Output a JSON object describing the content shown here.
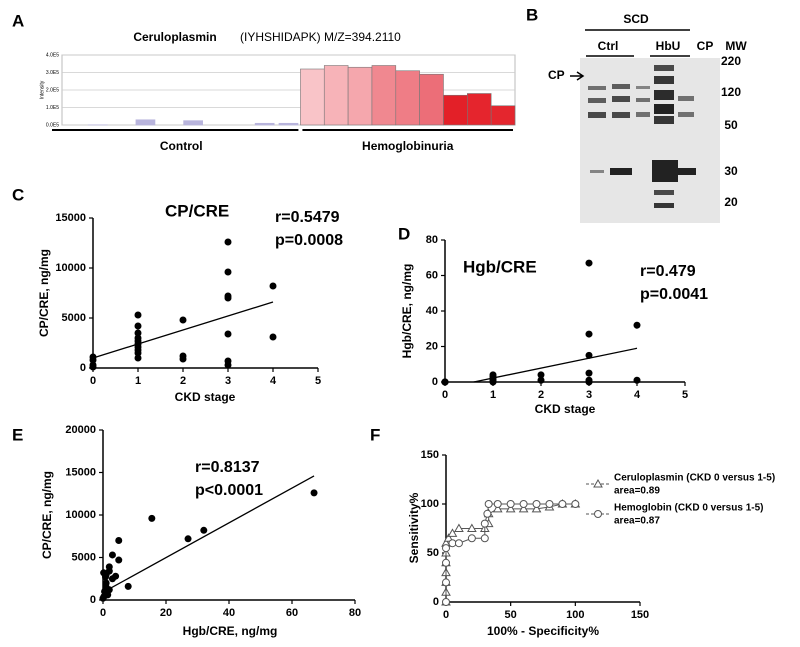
{
  "blot": {
    "panel": "B",
    "group": "SCD",
    "lanes": [
      "Ctrl",
      "HbU",
      "CP"
    ],
    "mw_header": "MW",
    "mw_markers": [
      220,
      120,
      50,
      30,
      20
    ],
    "arrow_label": "CP"
  },
  "chart_data": [
    {
      "type": "bar",
      "panel": "A",
      "title": "Ceruloplasmin",
      "subtitle": "(IYHSHIDAPK) M/Z=394.2110",
      "y_label": "Intensity",
      "groups": [
        {
          "label": "Control",
          "color": "#b8b4dc",
          "values": [
            0,
            1000,
            0,
            30000,
            0,
            25000,
            0,
            0,
            10000,
            10000
          ]
        },
        {
          "label": "Hemoglobinuria",
          "colors": [
            "#f9c4c8",
            "#f7b3b8",
            "#f5a7ad",
            "#f08890",
            "#ef7d86",
            "#ec6e78",
            "#e32028",
            "#e5252d",
            "#e4262e"
          ],
          "values": [
            320000,
            340000,
            330000,
            340000,
            310000,
            290000,
            170000,
            180000,
            110000
          ]
        }
      ],
      "ylim": [
        0,
        400000
      ],
      "yticks": [
        {
          "value": 0,
          "label": "0.0E5"
        },
        {
          "value": 100000,
          "label": "1.0E5"
        },
        {
          "value": 200000,
          "label": "2.0E5"
        },
        {
          "value": 300000,
          "label": "3.0E5"
        },
        {
          "value": 400000,
          "label": "4.0E5"
        }
      ],
      "grid": true
    },
    {
      "type": "scatter",
      "panel": "C",
      "title": "CP/CRE",
      "annotations": [
        "r=0.5479",
        "p=0.0008"
      ],
      "x_label": "CKD stage",
      "y_label": "CP/CRE, ng/mg",
      "series": [
        {
          "color": "#000000",
          "x": [
            0,
            0,
            0,
            0,
            1,
            1,
            1,
            1,
            1,
            1,
            1,
            1,
            1,
            1,
            2,
            2,
            2,
            3,
            3,
            3,
            3,
            3,
            3,
            3,
            4,
            4
          ],
          "values": [
            1100,
            800,
            300,
            100,
            5300,
            4200,
            3500,
            3000,
            2700,
            2400,
            2100,
            1800,
            1500,
            1000,
            4800,
            1200,
            900,
            12600,
            9600,
            7200,
            7000,
            3400,
            700,
            300,
            8200,
            3100
          ]
        }
      ],
      "fit_line": {
        "x": [
          0,
          4
        ],
        "y": [
          1000,
          6600
        ]
      },
      "xlim": [
        0,
        5
      ],
      "xticks": [
        0,
        1,
        2,
        3,
        4,
        5
      ],
      "ylim": [
        0,
        15000
      ],
      "yticks": [
        0,
        5000,
        10000,
        15000
      ]
    },
    {
      "type": "scatter",
      "panel": "D",
      "title": "Hgb/CRE",
      "annotations": [
        "r=0.479",
        "p=0.0041"
      ],
      "x_label": "CKD stage",
      "y_label": "Hgb/CRE, ng/mg",
      "series": [
        {
          "color": "#000000",
          "x": [
            0,
            0,
            0,
            1,
            1,
            1,
            1,
            1,
            2,
            2,
            3,
            3,
            3,
            3,
            3,
            3,
            4,
            4
          ],
          "values": [
            0,
            0,
            0,
            4,
            3,
            2,
            1,
            0,
            4,
            1,
            67,
            27,
            15,
            5,
            1,
            0,
            32,
            1
          ]
        }
      ],
      "fit_line": {
        "x": [
          0.6,
          4
        ],
        "y": [
          0,
          19
        ]
      },
      "xlim": [
        0,
        5
      ],
      "xticks": [
        0,
        1,
        2,
        3,
        4,
        5
      ],
      "ylim": [
        0,
        80
      ],
      "yticks": [
        0,
        20,
        40,
        60,
        80
      ]
    },
    {
      "type": "scatter",
      "panel": "E",
      "annotations": [
        "r=0.8137",
        "p<0.0001"
      ],
      "x_label": "Hgb/CRE, ng/mg",
      "y_label": "CP/CRE, ng/mg",
      "series": [
        {
          "color": "#000000",
          "x": [
            67,
            32,
            27,
            15.5,
            5,
            3,
            8,
            5,
            2,
            4,
            3,
            1,
            2,
            1,
            0.5,
            1,
            0.3,
            2,
            0,
            0.8,
            0.2,
            1.5
          ],
          "values": [
            12600,
            8200,
            7200,
            9600,
            7000,
            5300,
            1600,
            4700,
            3900,
            2800,
            2500,
            3000,
            3400,
            2000,
            1000,
            1500,
            400,
            1200,
            200,
            2700,
            3200,
            600
          ]
        }
      ],
      "fit_line": {
        "x": [
          0,
          67
        ],
        "y": [
          900,
          14600
        ]
      },
      "xlim": [
        0,
        80
      ],
      "xticks": [
        0,
        20,
        40,
        60,
        80
      ],
      "ylim": [
        0,
        20000
      ],
      "yticks": [
        0,
        5000,
        10000,
        15000,
        20000
      ]
    },
    {
      "type": "line",
      "panel": "F",
      "x_label": "100% - Specificity%",
      "y_label": "Sensitivity%",
      "series": [
        {
          "name": "Ceruloplasmin (CKD 0 versus 1-5)",
          "annotation": "area=0.89",
          "marker": "triangle",
          "color": "#555555",
          "x": [
            0,
            0,
            0,
            0,
            0,
            0,
            0,
            2,
            5,
            10,
            20,
            30,
            33,
            33,
            40,
            50,
            60,
            70,
            80,
            90,
            100
          ],
          "values": [
            0,
            10,
            20,
            30,
            40,
            50,
            60,
            65,
            70,
            75,
            75,
            75,
            80,
            90,
            95,
            95,
            95,
            95,
            97,
            100,
            100
          ]
        },
        {
          "name": "Hemoglobin (CKD 0 versus 1-5)",
          "annotation": "area=0.87",
          "marker": "circle",
          "color": "#555555",
          "x": [
            0,
            0,
            0,
            0,
            5,
            10,
            20,
            30,
            30,
            32,
            33,
            40,
            50,
            60,
            70,
            80,
            90,
            100
          ],
          "values": [
            0,
            20,
            40,
            55,
            60,
            60,
            65,
            65,
            80,
            90,
            100,
            100,
            100,
            100,
            100,
            100,
            100,
            100
          ]
        }
      ],
      "xlim": [
        0,
        150
      ],
      "xticks": [
        0,
        50,
        100,
        150
      ],
      "ylim": [
        0,
        150
      ],
      "yticks": [
        0,
        50,
        100,
        150
      ]
    }
  ]
}
